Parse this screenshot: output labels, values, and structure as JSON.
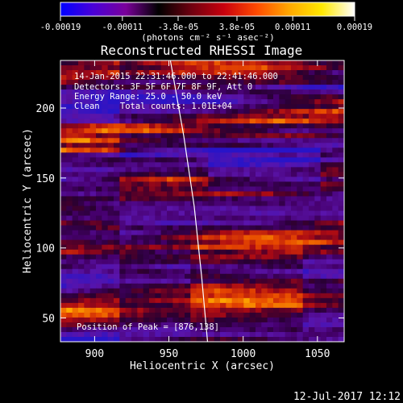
{
  "colorbar": {
    "ticks": [
      "-0.00019",
      "-0.00011",
      "-3.8e-05",
      "3.8e-05",
      "0.00011",
      "0.00019"
    ],
    "tick_values": [
      -0.00019,
      -0.00011,
      -3.8e-05,
      3.8e-05,
      0.00011,
      0.00019
    ],
    "range": [
      -0.00019,
      0.00019
    ],
    "unit_label": "(photons cm⁻² s⁻¹ asec⁻²)",
    "colors": [
      "#0000ff",
      "#4a00d8",
      "#7a009a",
      "#000000",
      "#6e0010",
      "#c8000e",
      "#ff4a00",
      "#ffa800",
      "#ffe800",
      "#ffffff"
    ]
  },
  "chart_data": {
    "type": "heatmap",
    "title": "Reconstructed RHESSI Image",
    "xlabel": "Heliocentric X (arcsec)",
    "ylabel": "Heliocentric Y (arcsec)",
    "xlim": [
      877,
      1068
    ],
    "ylim": [
      33,
      234
    ],
    "xticks": [
      900,
      950,
      1000,
      1050
    ],
    "yticks": [
      50,
      100,
      150,
      200
    ],
    "annotations": [
      "14-Jan-2015 22:31:46.000 to 22:41:46.000",
      "Detectors: 3F 5F 6F 7F 8F 9F, Att 0",
      "Energy Range: 25.0 - 50.0 keV",
      "Clean    Total counts: 1.01E+04"
    ],
    "peak_label": "Position of Peak = [876,138]",
    "limb_arc": [
      [
        951,
        234
      ],
      [
        960,
        180
      ],
      [
        967,
        130
      ],
      [
        972,
        80
      ],
      [
        976,
        33
      ]
    ],
    "grid": false
  },
  "timestamp": "12-Jul-2017 12:12"
}
